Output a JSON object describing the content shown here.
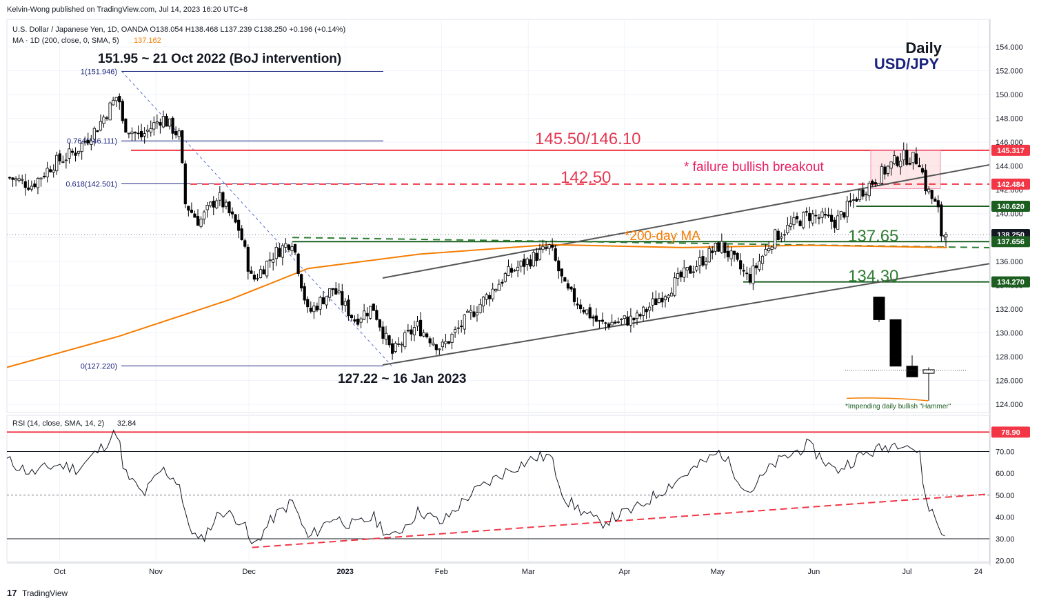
{
  "header": {
    "publisher": "Kelvin-Wong published on TradingView.com, Jul 14, 2023 16:20 UTC+8",
    "symbol_line": "U.S. Dollar / Japanese Yen, 1D, OANDA  O138.054  H138.468  L137.239  C138.250  +0.196 (+0.14%)",
    "ma_line": "MA · 1D (200, close, 0, SMA, 5)",
    "ma_value": "137.162"
  },
  "title": {
    "timeframe": "Daily",
    "pair": "USD/JPY"
  },
  "annotations": {
    "intervention": "151.95 ~ 21 Oct 2022 (BoJ intervention)",
    "low": "127.22 ~ 16 Jan 2023",
    "resistance": "145.50/146.10",
    "failure": "* failure bullish breakout",
    "level_142": "142.50",
    "ma_label": "*200-day MA",
    "level_137": "137.65",
    "level_134": "134.30",
    "hammer": "*Impending daily bullish \"Hammer\""
  },
  "fib": [
    {
      "label": "1(151.946)",
      "value": 151.946
    },
    {
      "label": "0.764(146.111)",
      "value": 146.111
    },
    {
      "label": "0.618(142.501)",
      "value": 142.501
    },
    {
      "label": "0(127.220)",
      "value": 127.22
    }
  ],
  "price_badges": [
    {
      "text": "145.317",
      "value": 145.317,
      "color": "#f23645"
    },
    {
      "text": "142.484",
      "value": 142.484,
      "color": "#f23645"
    },
    {
      "text": "140.620",
      "value": 140.62,
      "color": "#1b5e20"
    },
    {
      "text": "138.250",
      "value": 138.25,
      "color": "#131722"
    },
    {
      "text": "137.656",
      "value": 137.656,
      "color": "#1b5e20"
    },
    {
      "text": "134.270",
      "value": 134.27,
      "color": "#1b5e20"
    }
  ],
  "rsi": {
    "label": "RSI (14, close, SMA, 14, 2)",
    "value": "32.84",
    "overbought_badge": "78.90"
  },
  "time_labels": [
    "Oct",
    "Nov",
    "Dec",
    "2023",
    "Feb",
    "Mar",
    "Apr",
    "May",
    "Jun",
    "Jul",
    "24"
  ],
  "branding": {
    "logo_text": "TradingView"
  },
  "colors": {
    "up": "#ffffff",
    "down": "#000000",
    "ma": "#f57c00",
    "red": "#f23645",
    "green": "#1b5e20",
    "channel": "#555555",
    "navy": "#1a237e"
  },
  "chart_data": [
    {
      "type": "candlestick",
      "title": "U.S. Dollar / Japanese Yen, 1D, OANDA",
      "y_axis_ticks": [
        124,
        126,
        128,
        130,
        132,
        134,
        136,
        138,
        140,
        142,
        144,
        146,
        148,
        150,
        152,
        154
      ],
      "ylim": [
        123.2,
        155.7
      ],
      "x_axis_labels": [
        "Oct",
        "Nov",
        "Dec",
        "2023",
        "Feb",
        "Mar",
        "Apr",
        "May",
        "Jun",
        "Jul",
        "24"
      ],
      "close_path": [
        {
          "date": "2022-09-14",
          "close": 143.1
        },
        {
          "date": "2022-09-22",
          "close": 142.4
        },
        {
          "date": "2022-09-29",
          "close": 144.2
        },
        {
          "date": "2022-10-06",
          "close": 145.2
        },
        {
          "date": "2022-10-13",
          "close": 147.2
        },
        {
          "date": "2022-10-20",
          "close": 150.1
        },
        {
          "date": "2022-10-21",
          "close": 147.6
        },
        {
          "date": "2022-10-27",
          "close": 146.4
        },
        {
          "date": "2022-11-03",
          "close": 148.1
        },
        {
          "date": "2022-11-09",
          "close": 146.4
        },
        {
          "date": "2022-11-10",
          "close": 141.0
        },
        {
          "date": "2022-11-15",
          "close": 139.3
        },
        {
          "date": "2022-11-21",
          "close": 141.5
        },
        {
          "date": "2022-11-28",
          "close": 138.6
        },
        {
          "date": "2022-12-02",
          "close": 134.3
        },
        {
          "date": "2022-12-09",
          "close": 136.6
        },
        {
          "date": "2022-12-15",
          "close": 137.8
        },
        {
          "date": "2022-12-20",
          "close": 131.6
        },
        {
          "date": "2022-12-28",
          "close": 133.7
        },
        {
          "date": "2023-01-04",
          "close": 131.1
        },
        {
          "date": "2023-01-10",
          "close": 132.2
        },
        {
          "date": "2023-01-16",
          "close": 128.2
        },
        {
          "date": "2023-01-24",
          "close": 130.6
        },
        {
          "date": "2023-02-01",
          "close": 128.7
        },
        {
          "date": "2023-02-10",
          "close": 131.4
        },
        {
          "date": "2023-02-22",
          "close": 134.9
        },
        {
          "date": "2023-03-08",
          "close": 137.2
        },
        {
          "date": "2023-03-13",
          "close": 133.6
        },
        {
          "date": "2023-03-24",
          "close": 130.7
        },
        {
          "date": "2023-04-05",
          "close": 131.2
        },
        {
          "date": "2023-04-19",
          "close": 134.6
        },
        {
          "date": "2023-05-02",
          "close": 137.4
        },
        {
          "date": "2023-05-11",
          "close": 134.5
        },
        {
          "date": "2023-05-19",
          "close": 138.0
        },
        {
          "date": "2023-05-30",
          "close": 139.9
        },
        {
          "date": "2023-06-08",
          "close": 139.3
        },
        {
          "date": "2023-06-16",
          "close": 141.8
        },
        {
          "date": "2023-06-29",
          "close": 144.8
        },
        {
          "date": "2023-07-05",
          "close": 144.5
        },
        {
          "date": "2023-07-07",
          "close": 142.3
        },
        {
          "date": "2023-07-11",
          "close": 140.3
        },
        {
          "date": "2023-07-12",
          "close": 138.3
        },
        {
          "date": "2023-07-14",
          "close": 138.25
        }
      ],
      "last_bar": {
        "date": "2023-07-14",
        "open": 138.054,
        "high": 138.468,
        "low": 137.239,
        "close": 138.25
      },
      "ma200": [
        {
          "date": "2022-09-14",
          "value": 127.1
        },
        {
          "date": "2022-10-20",
          "value": 129.7
        },
        {
          "date": "2022-11-25",
          "value": 132.8
        },
        {
          "date": "2022-12-20",
          "value": 135.4
        },
        {
          "date": "2023-01-25",
          "value": 136.6
        },
        {
          "date": "2023-03-08",
          "value": 137.4
        },
        {
          "date": "2023-04-20",
          "value": 137.15
        },
        {
          "date": "2023-05-30",
          "value": 137.35
        },
        {
          "date": "2023-07-14",
          "value": 137.16
        }
      ],
      "levels": [
        {
          "label": "145.50/146.10",
          "value": 145.317
        },
        {
          "label": "142.50",
          "value": 142.484
        },
        {
          "label": "140.620",
          "value": 140.62
        },
        {
          "label": "137.65",
          "value": 137.656
        },
        {
          "label": "134.30",
          "value": 134.27
        }
      ],
      "fib_retracement": {
        "1": 151.946,
        "0.764": 146.111,
        "0.618": 142.501,
        "0": 127.22
      },
      "channel": {
        "upper": [
          {
            "date": "2023-01-10",
            "value": 134.6
          },
          {
            "date": "2023-07-19",
            "value": 144.1
          }
        ],
        "lower": [
          {
            "date": "2023-01-16",
            "value": 127.3
          },
          {
            "date": "2023-07-19",
            "value": 135.8
          }
        ]
      },
      "inset_hammer": [
        {
          "open": 133.0,
          "high": 133.0,
          "low": 130.9,
          "close": 131.1
        },
        {
          "open": 131.1,
          "high": 131.1,
          "low": 127.2,
          "close": 127.2
        },
        {
          "open": 127.2,
          "high": 128.1,
          "low": 126.3,
          "close": 126.3
        },
        {
          "open": 126.6,
          "high": 127.1,
          "low": 124.3,
          "close": 126.9
        }
      ]
    },
    {
      "type": "line",
      "title": "RSI (14, close, SMA, 14, 2)",
      "y_axis_ticks": [
        20,
        30,
        40,
        50,
        60,
        70
      ],
      "levels": [
        30,
        50,
        70,
        78.9
      ],
      "series": [
        {
          "name": "RSI",
          "points": [
            {
              "date": "2022-09-14",
              "value": 66
            },
            {
              "date": "2022-09-22",
              "value": 60
            },
            {
              "date": "2022-09-30",
              "value": 64
            },
            {
              "date": "2022-10-07",
              "value": 62
            },
            {
              "date": "2022-10-14",
              "value": 71
            },
            {
              "date": "2022-10-20",
              "value": 80
            },
            {
              "date": "2022-10-21",
              "value": 62
            },
            {
              "date": "2022-10-28",
              "value": 50
            },
            {
              "date": "2022-11-03",
              "value": 62
            },
            {
              "date": "2022-11-09",
              "value": 55
            },
            {
              "date": "2022-11-10",
              "value": 41
            },
            {
              "date": "2022-11-15",
              "value": 28
            },
            {
              "date": "2022-11-22",
              "value": 43
            },
            {
              "date": "2022-11-29",
              "value": 38
            },
            {
              "date": "2022-12-02",
              "value": 26
            },
            {
              "date": "2022-12-09",
              "value": 40
            },
            {
              "date": "2022-12-15",
              "value": 47
            },
            {
              "date": "2022-12-20",
              "value": 30
            },
            {
              "date": "2022-12-28",
              "value": 40
            },
            {
              "date": "2023-01-04",
              "value": 36
            },
            {
              "date": "2023-01-10",
              "value": 40
            },
            {
              "date": "2023-01-16",
              "value": 30
            },
            {
              "date": "2023-01-25",
              "value": 43
            },
            {
              "date": "2023-02-01",
              "value": 37
            },
            {
              "date": "2023-02-10",
              "value": 50
            },
            {
              "date": "2023-02-22",
              "value": 61
            },
            {
              "date": "2023-03-03",
              "value": 67
            },
            {
              "date": "2023-03-08",
              "value": 68
            },
            {
              "date": "2023-03-13",
              "value": 48
            },
            {
              "date": "2023-03-24",
              "value": 37
            },
            {
              "date": "2023-04-05",
              "value": 44
            },
            {
              "date": "2023-04-19",
              "value": 58
            },
            {
              "date": "2023-05-02",
              "value": 70
            },
            {
              "date": "2023-05-11",
              "value": 51
            },
            {
              "date": "2023-05-19",
              "value": 64
            },
            {
              "date": "2023-05-30",
              "value": 73
            },
            {
              "date": "2023-06-08",
              "value": 61
            },
            {
              "date": "2023-06-16",
              "value": 68
            },
            {
              "date": "2023-06-30",
              "value": 75
            },
            {
              "date": "2023-07-05",
              "value": 69
            },
            {
              "date": "2023-07-07",
              "value": 48
            },
            {
              "date": "2023-07-11",
              "value": 37
            },
            {
              "date": "2023-07-12",
              "value": 32
            },
            {
              "date": "2023-07-14",
              "value": 32.84
            }
          ]
        }
      ],
      "trendline": [
        {
          "date": "2022-12-02",
          "value": 26
        },
        {
          "date": "2023-07-19",
          "value": 50.5
        }
      ]
    }
  ]
}
